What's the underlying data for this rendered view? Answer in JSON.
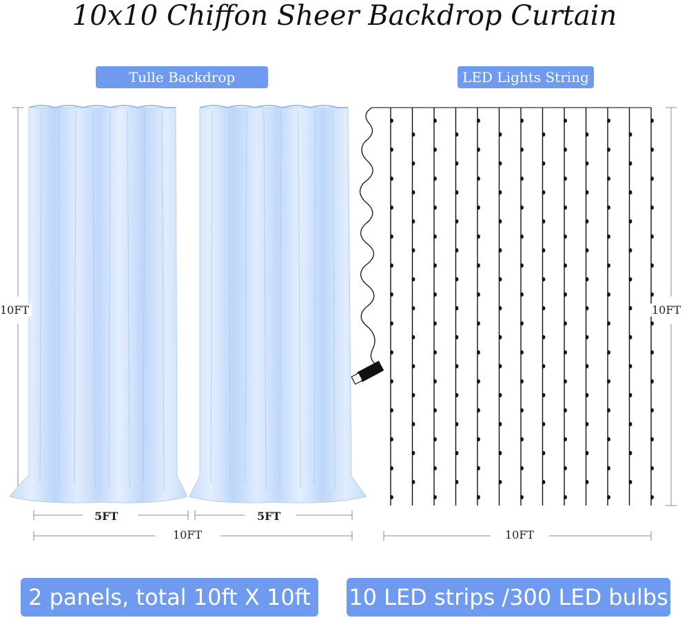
{
  "title": "10x10 Chiffon Sheer Backdrop Curtain",
  "left_label": "Tulle Backdrop",
  "right_label": "LED Lights String",
  "dims": {
    "panel_width_1": "5FT",
    "panel_width_2": "5FT",
    "total_width_left": "10FT",
    "total_width_right": "10FT",
    "height_left": "10FT",
    "height_right": "10FT"
  },
  "footer_left": "2 panels, total 10ft X 10ft",
  "footer_right": "10 LED strips /300 LED bulbs",
  "colors": {
    "accent": "#6e9bef",
    "curtain": "#c4dcfb",
    "curtain_light": "#dfecfd",
    "led_wire": "#111111"
  }
}
